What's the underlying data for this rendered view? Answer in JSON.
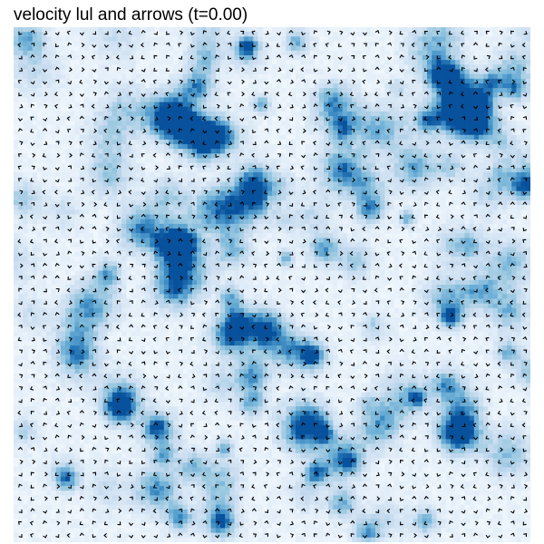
{
  "chart_data": {
    "type": "heatmap",
    "title": "velocity lul and arrows (t=0.00)",
    "xlabel": "",
    "ylabel": "",
    "colormap": "Blues",
    "grid": false,
    "legend": "none",
    "field_grid": [
      110,
      110
    ],
    "arrow_grid": [
      42,
      42
    ],
    "vmin": 0,
    "vmax": 1,
    "typical_magnitude": 0.18,
    "hotspot_magnitude": 0.75,
    "overlay": "quiver",
    "arrow_color": "#000000",
    "colors": {
      "low": "#f7fbff",
      "high": "#08519c"
    }
  }
}
